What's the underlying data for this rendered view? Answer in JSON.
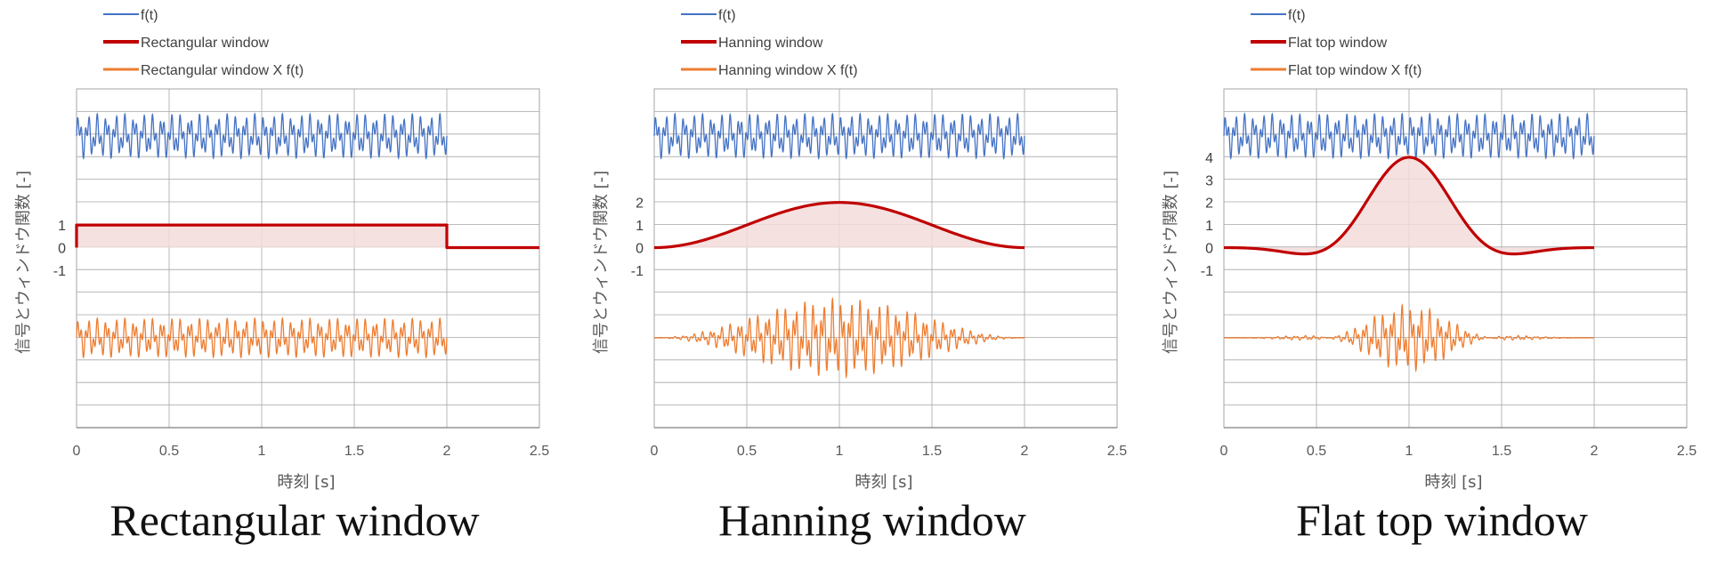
{
  "colors": {
    "signal": "#4472C4",
    "window": "#C00000",
    "window_fill": "#F2DCDB",
    "product": "#ED7D31",
    "grid": "#A6A6A6",
    "axis": "#7F7F7F",
    "text": "#595959"
  },
  "chart_data": [
    {
      "type": "line",
      "title": "Rectangular window",
      "xlabel": "時刻 [s]",
      "ylabel": "信号とウィンドウ関数 [-]",
      "xlim": [
        0,
        2.5
      ],
      "xticks": [
        "0",
        "0.5",
        "1",
        "1.5",
        "2",
        "2.5"
      ],
      "window_ticks": [
        "1",
        "0",
        "-1"
      ],
      "window_tick_values": [
        1,
        0,
        -1
      ],
      "window_range": [
        -1.0,
        1.2
      ],
      "legend": [
        "f(t)",
        "Rectangular window",
        "Rectangular window X f(t)"
      ],
      "window_kind": "rectangular",
      "window_peak": 1,
      "signal_duration": 2,
      "grid": true,
      "series": [
        {
          "name": "f(t)",
          "color": "signal",
          "description": "oscillation from 0 to 2 s"
        },
        {
          "name": "Rectangular window",
          "color": "window",
          "x": [
            0,
            0,
            2,
            2,
            2.5
          ],
          "values": [
            0,
            1,
            1,
            0,
            0
          ]
        },
        {
          "name": "Rectangular window X f(t)",
          "color": "product",
          "description": "oscillation from 0 to 2 s"
        }
      ]
    },
    {
      "type": "line",
      "title": "Hanning window",
      "xlabel": "時刻 [s]",
      "ylabel": "信号とウィンドウ関数 [-]",
      "xlim": [
        0,
        2.5
      ],
      "xticks": [
        "0",
        "0.5",
        "1",
        "1.5",
        "2",
        "2.5"
      ],
      "window_ticks": [
        "2",
        "1",
        "0",
        "-1"
      ],
      "window_tick_values": [
        2,
        1,
        0,
        -1
      ],
      "window_range": [
        -1.5,
        2.4
      ],
      "legend": [
        "f(t)",
        "Hanning window",
        "Hanning window X f(t)"
      ],
      "window_kind": "hanning",
      "window_peak": 2,
      "signal_duration": 2,
      "grid": true,
      "series": [
        {
          "name": "f(t)",
          "color": "signal",
          "description": "oscillation from 0 to 2 s"
        },
        {
          "name": "Hanning window",
          "color": "window",
          "x": [
            0,
            0.5,
            1,
            1.5,
            2
          ],
          "values": [
            0,
            1,
            2,
            1,
            0
          ]
        },
        {
          "name": "Hanning window X f(t)",
          "color": "product",
          "description": "oscillation from 0 to 2 s"
        }
      ]
    },
    {
      "type": "line",
      "title": "Flat top window",
      "xlabel": "時刻 [s]",
      "ylabel": "信号とウィンドウ関数 [-]",
      "xlim": [
        0,
        2.5
      ],
      "xticks": [
        "0",
        "0.5",
        "1",
        "1.5",
        "2",
        "2.5"
      ],
      "window_ticks": [
        "4",
        "3",
        "2",
        "1",
        "0",
        "-1"
      ],
      "window_tick_values": [
        4,
        3,
        2,
        1,
        0,
        -1
      ],
      "window_range": [
        -1.0,
        4.5
      ],
      "legend": [
        "f(t)",
        "Flat top window",
        "Flat top window X f(t)"
      ],
      "window_kind": "flattop",
      "window_peak": 4,
      "signal_duration": 2,
      "grid": true,
      "series": [
        {
          "name": "f(t)",
          "color": "signal",
          "description": "oscillation from 0 to 2 s"
        },
        {
          "name": "Flat top window",
          "color": "window",
          "x": [
            0,
            0.37,
            0.5,
            1,
            1.5,
            1.63,
            2
          ],
          "values": [
            0,
            -0.2,
            0.1,
            4,
            0.1,
            -0.2,
            0
          ]
        },
        {
          "name": "Flat top window X f(t)",
          "color": "product",
          "description": "oscillation from 0 to 2 s"
        }
      ]
    }
  ]
}
